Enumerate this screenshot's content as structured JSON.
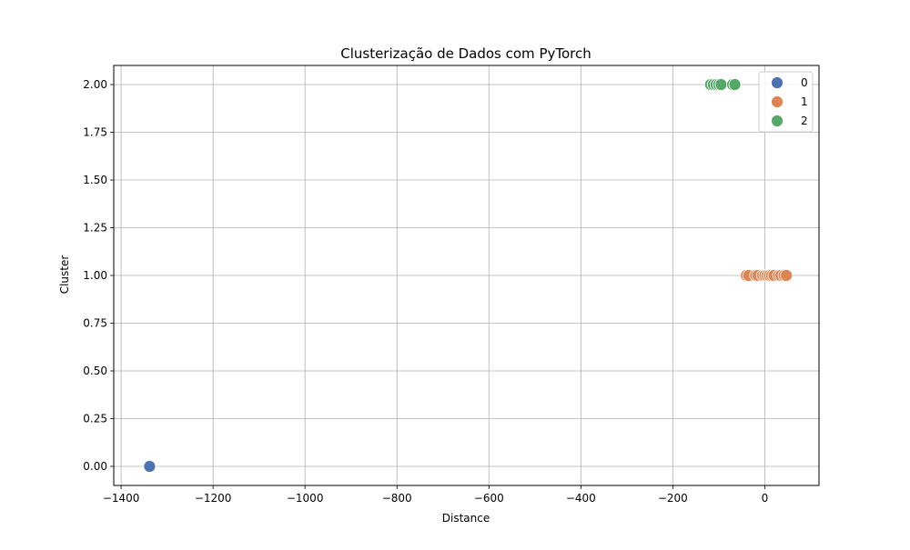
{
  "chart_data": {
    "type": "scatter",
    "title": "Clusterização de Dados com PyTorch",
    "xlabel": "Distance",
    "ylabel": "Cluster",
    "xlim": [
      -1416,
      118
    ],
    "ylim": [
      -0.1,
      2.1
    ],
    "xticks": [
      -1400,
      -1200,
      -1000,
      -800,
      -600,
      -400,
      -200,
      0
    ],
    "xtick_labels": [
      "−1400",
      "−1200",
      "−1000",
      "−800",
      "−600",
      "−400",
      "−200",
      "0"
    ],
    "yticks": [
      0,
      0.25,
      0.5,
      0.75,
      1,
      1.25,
      1.5,
      1.75,
      2
    ],
    "ytick_labels": [
      "0.00",
      "0.25",
      "0.50",
      "0.75",
      "1.00",
      "1.25",
      "1.50",
      "1.75",
      "2.00"
    ],
    "grid": true,
    "legend_position": "top-right",
    "series": [
      {
        "name": "0",
        "color": "#4c72b0",
        "points": [
          {
            "x": -1338,
            "y": 0
          }
        ]
      },
      {
        "name": "1",
        "color": "#dd8452",
        "points": [
          {
            "x": -40,
            "y": 1
          },
          {
            "x": -35,
            "y": 1
          },
          {
            "x": -20,
            "y": 1
          },
          {
            "x": -15,
            "y": 1
          },
          {
            "x": -5,
            "y": 1
          },
          {
            "x": 0,
            "y": 1
          },
          {
            "x": 5,
            "y": 1
          },
          {
            "x": 10,
            "y": 1
          },
          {
            "x": 15,
            "y": 1
          },
          {
            "x": 20,
            "y": 1
          },
          {
            "x": 30,
            "y": 1
          },
          {
            "x": 35,
            "y": 1
          },
          {
            "x": 42,
            "y": 1
          },
          {
            "x": 47,
            "y": 1
          }
        ]
      },
      {
        "name": "2",
        "color": "#55a868",
        "points": [
          {
            "x": -118,
            "y": 2
          },
          {
            "x": -112,
            "y": 2
          },
          {
            "x": -106,
            "y": 2
          },
          {
            "x": -100,
            "y": 2
          },
          {
            "x": -95,
            "y": 2
          },
          {
            "x": -70,
            "y": 2
          },
          {
            "x": -65,
            "y": 2
          }
        ]
      }
    ]
  }
}
